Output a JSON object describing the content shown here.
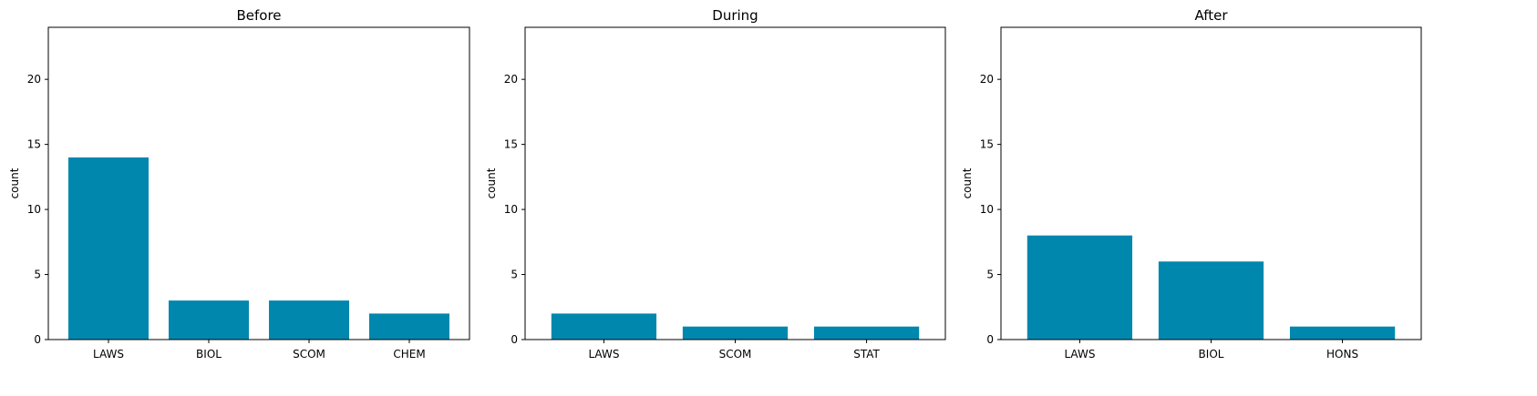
{
  "chart_data": [
    {
      "type": "bar",
      "title": "Before",
      "ylabel": "count",
      "categories": [
        "LAWS",
        "BIOL",
        "SCOM",
        "CHEM"
      ],
      "values": [
        14,
        3,
        3,
        2
      ],
      "ylim": [
        0,
        24
      ],
      "yticks": [
        0,
        5,
        10,
        15,
        20
      ],
      "grid": false,
      "color": "#0087AE"
    },
    {
      "type": "bar",
      "title": "During",
      "ylabel": "count",
      "categories": [
        "LAWS",
        "SCOM",
        "STAT"
      ],
      "values": [
        2,
        1,
        1
      ],
      "ylim": [
        0,
        24
      ],
      "yticks": [
        0,
        5,
        10,
        15,
        20
      ],
      "grid": false,
      "color": "#0087AE"
    },
    {
      "type": "bar",
      "title": "After",
      "ylabel": "count",
      "categories": [
        "LAWS",
        "BIOL",
        "HONS"
      ],
      "values": [
        8,
        6,
        1
      ],
      "ylim": [
        0,
        24
      ],
      "yticks": [
        0,
        5,
        10,
        15,
        20
      ],
      "grid": false,
      "color": "#0087AE"
    }
  ]
}
